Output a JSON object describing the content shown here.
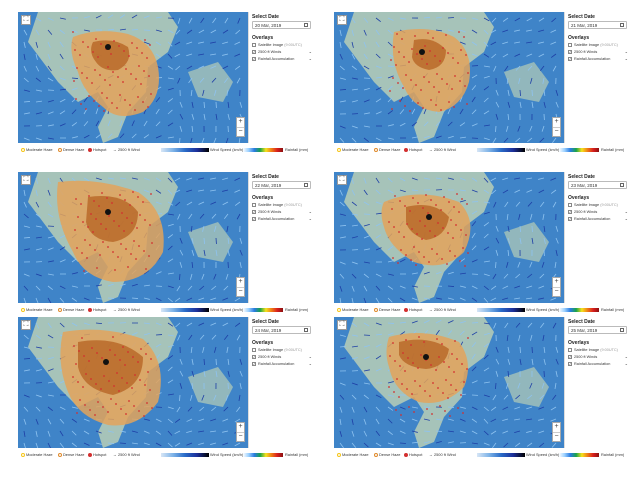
{
  "sidebar": {
    "select_date_label": "Select Date",
    "overlays_label": "Overlays",
    "overlays": [
      {
        "label": "Satellite Image",
        "suffix": "(9:00UTC)",
        "checked": false
      },
      {
        "label": "2500 ft Winds",
        "checked": true
      },
      {
        "label": "Rainfall Accumulation",
        "checked": true
      }
    ]
  },
  "legend": {
    "moderate_haze": "Moderate Haze",
    "dense_haze": "Dense Haze",
    "hotspot": "Hotspot",
    "wind_2500": "2500 ft Wind",
    "wind_speed": "Wind Speed (km/h)",
    "rainfall": "Rainfall (mm)",
    "colors": {
      "moderate_haze": "#f5c518",
      "dense_haze": "#e08a2a",
      "hotspot": "#d32f2f"
    }
  },
  "panels": [
    {
      "date": "20 Mar, 2019"
    },
    {
      "date": "21 Mar, 2019"
    },
    {
      "date": "22 Mar, 2019"
    },
    {
      "date": "23 Mar, 2019"
    },
    {
      "date": "24 Mar, 2019"
    },
    {
      "date": "25 Mar, 2019"
    }
  ],
  "colors": {
    "sea": "#3f84c8",
    "land": "#c9d8b4",
    "haze_moderate": "#e3a35a",
    "haze_dense": "#b86a2a"
  },
  "icons": {
    "fullscreen": "fullscreen-icon",
    "calendar": "calendar-icon",
    "zoom_in": "zoom-in-icon",
    "zoom_out": "zoom-out-icon"
  }
}
